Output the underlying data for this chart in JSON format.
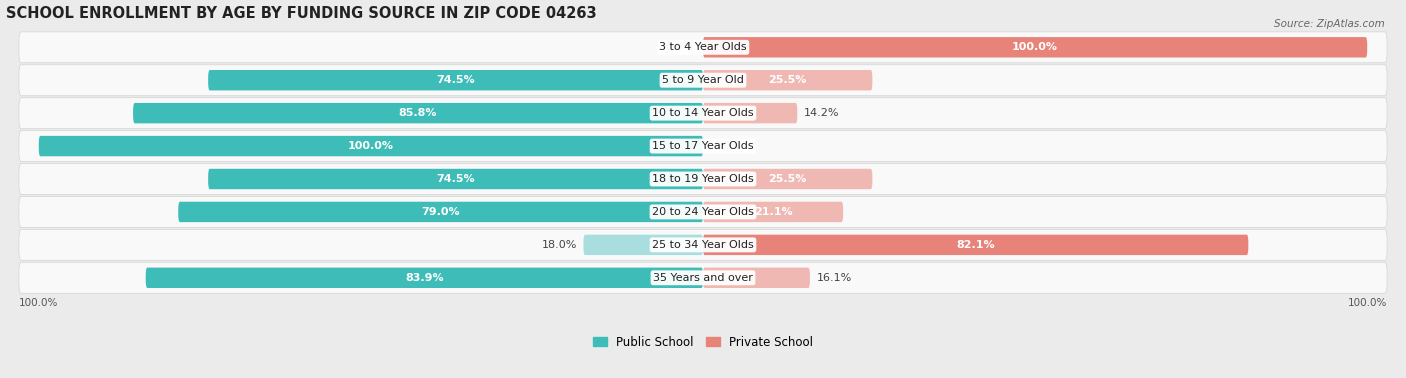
{
  "title": "SCHOOL ENROLLMENT BY AGE BY FUNDING SOURCE IN ZIP CODE 04263",
  "source": "Source: ZipAtlas.com",
  "categories": [
    "3 to 4 Year Olds",
    "5 to 9 Year Old",
    "10 to 14 Year Olds",
    "15 to 17 Year Olds",
    "18 to 19 Year Olds",
    "20 to 24 Year Olds",
    "25 to 34 Year Olds",
    "35 Years and over"
  ],
  "public_pct": [
    0.0,
    74.5,
    85.8,
    100.0,
    74.5,
    79.0,
    18.0,
    83.9
  ],
  "private_pct": [
    100.0,
    25.5,
    14.2,
    0.0,
    25.5,
    21.1,
    82.1,
    16.1
  ],
  "public_color": "#3dbcb8",
  "public_color_light": "#a8dedd",
  "private_color": "#e8837a",
  "private_color_light": "#f0b8b3",
  "bg_color": "#ebebeb",
  "bar_height": 0.62,
  "title_fontsize": 10.5,
  "label_fontsize": 8.0,
  "tick_fontsize": 7.5,
  "legend_fontsize": 8.5
}
